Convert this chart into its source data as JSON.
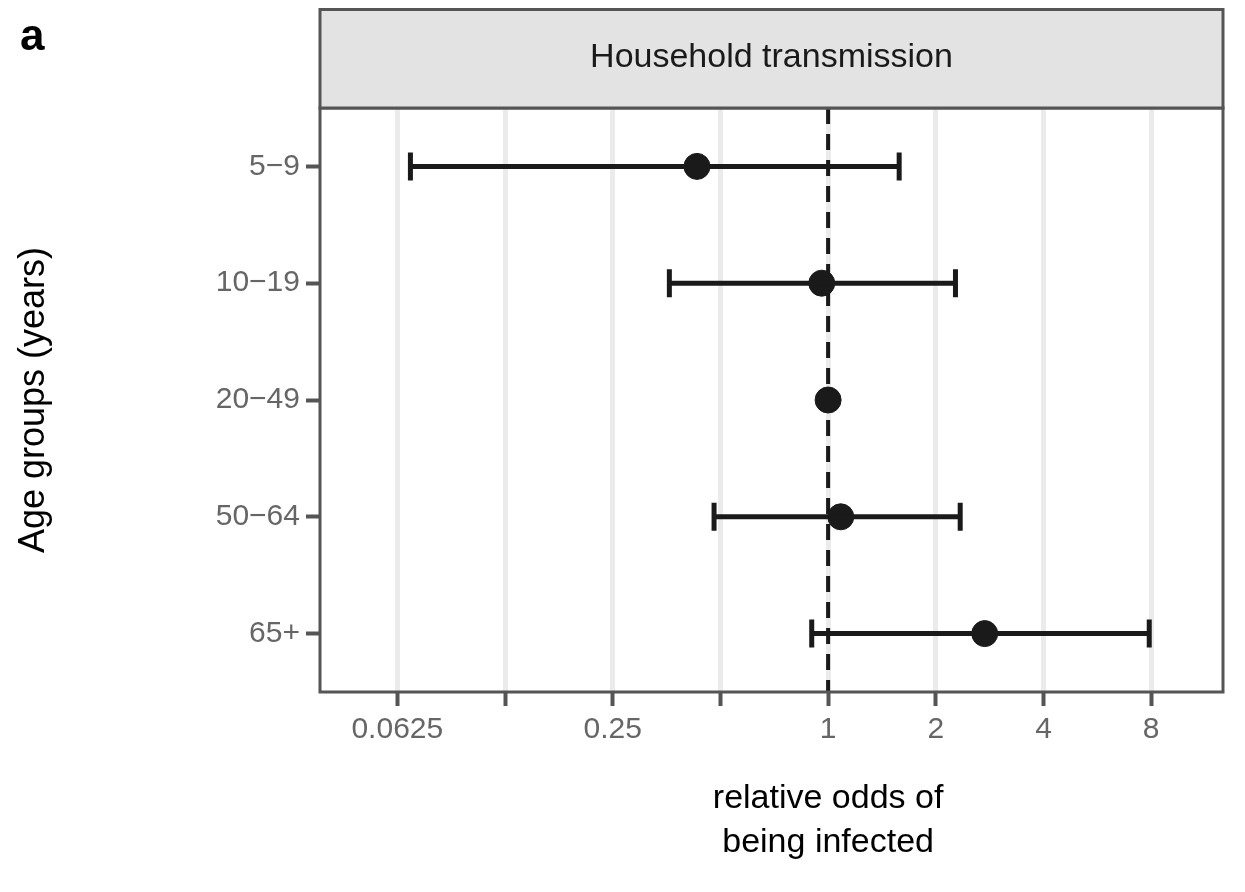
{
  "chart_data": {
    "type": "scatter",
    "orientation": "horizontal",
    "title": "Household transmission",
    "xlabel": "relative odds of being infected",
    "ylabel": "Age groups (years)",
    "annotations": [
      "a"
    ],
    "categories": [
      "5−9",
      "10−19",
      "20−49",
      "50−64",
      "65+"
    ],
    "values": [
      0.43,
      0.96,
      1,
      1.085,
      2.74
    ],
    "errors": [
      [
        0.068,
        1.58
      ],
      [
        0.36,
        2.27
      ],
      null,
      [
        0.48,
        2.34
      ],
      [
        0.9,
        7.9
      ]
    ],
    "color": "#1a1a1a",
    "marker": "circle",
    "log": "x",
    "grid": "x",
    "xlim": [
      0.038,
      12.7
    ],
    "xticks": [
      0.0625,
      {
        "value": 0.125,
        "label": null
      },
      0.25,
      {
        "value": 0.5,
        "label": null
      },
      1,
      2,
      4,
      8
    ],
    "ref_lines": [
      {
        "axis": "x",
        "value": 1,
        "line_style": "dashed",
        "color": "#1a1a1a"
      }
    ]
  }
}
